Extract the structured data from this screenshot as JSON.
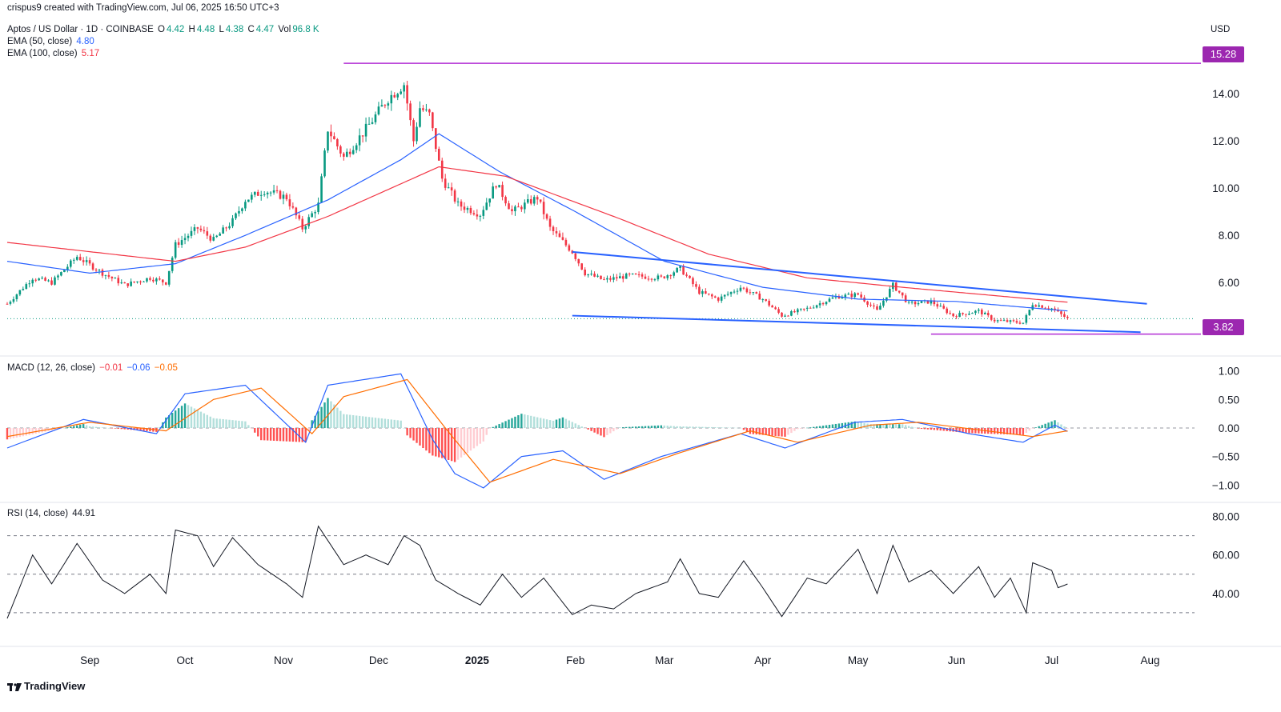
{
  "header": {
    "credit": "crispus9 created with TradingView.com, Jul 06, 2025 16:50 UTC+3",
    "symbol": "Aptos / US Dollar · 1D · COINBASE",
    "ohlc": {
      "o_label": "O",
      "o": "4.42",
      "h_label": "H",
      "h": "4.48",
      "l_label": "L",
      "l": "4.38",
      "c_label": "C",
      "c": "4.47",
      "v_label": "Vol",
      "v": "96.8 K"
    },
    "ema50": {
      "label": "EMA (50, close)",
      "value": "4.80"
    },
    "ema100": {
      "label": "EMA (100, close)",
      "value": "5.17"
    },
    "currency": "USD"
  },
  "macd_header": {
    "label": "MACD (12, 26, close)",
    "hist": "−0.01",
    "macd": "−0.06",
    "signal": "−0.05"
  },
  "rsi_header": {
    "label": "RSI (14, close)",
    "value": "44.91"
  },
  "footer": {
    "brand": "TradingView"
  },
  "price_tags": {
    "upper": "15.28",
    "lower": "3.82"
  },
  "colors": {
    "up": "#089981",
    "down": "#f23645",
    "ema50": "#2962ff",
    "ema100": "#f23645",
    "trend": "#2962ff",
    "level": "#b22fd4",
    "macd": "#2962ff",
    "signal": "#ff6d00",
    "rsi": "#131722"
  },
  "chart_data": [
    {
      "type": "candlestick",
      "title": "Aptos / US Dollar · 1D · COINBASE",
      "x_ticks": [
        "Sep",
        "Oct",
        "Nov",
        "Dec",
        "2025",
        "Feb",
        "Mar",
        "Apr",
        "May",
        "Jun",
        "Jul",
        "Aug"
      ],
      "y_ticks": [
        "14.00",
        "12.00",
        "10.00",
        "8.00",
        "6.00"
      ],
      "ylim": [
        3.4,
        16.2
      ],
      "x_range": [
        "2024-08-06",
        "2025-08-15"
      ],
      "close_anchors": [
        [
          "2024-08-06",
          5.1
        ],
        [
          "2024-08-14",
          6.2
        ],
        [
          "2024-08-20",
          6.0
        ],
        [
          "2024-08-28",
          7.1
        ],
        [
          "2024-09-05",
          6.4
        ],
        [
          "2024-09-12",
          5.9
        ],
        [
          "2024-09-20",
          6.2
        ],
        [
          "2024-09-25",
          6.0
        ],
        [
          "2024-09-28",
          7.6
        ],
        [
          "2024-10-05",
          8.3
        ],
        [
          "2024-10-10",
          7.8
        ],
        [
          "2024-10-16",
          8.6
        ],
        [
          "2024-10-20",
          9.5
        ],
        [
          "2024-10-26",
          9.9
        ],
        [
          "2024-11-02",
          9.6
        ],
        [
          "2024-11-07",
          8.3
        ],
        [
          "2024-11-12",
          9.3
        ],
        [
          "2024-11-15",
          12.5
        ],
        [
          "2024-11-20",
          11.3
        ],
        [
          "2024-11-27",
          12.5
        ],
        [
          "2024-12-04",
          13.8
        ],
        [
          "2024-12-09",
          14.4
        ],
        [
          "2024-12-12",
          12.0
        ],
        [
          "2024-12-14",
          13.4
        ],
        [
          "2024-12-17",
          13.1
        ],
        [
          "2024-12-21",
          10.4
        ],
        [
          "2024-12-26",
          9.3
        ],
        [
          "2025-01-02",
          8.9
        ],
        [
          "2025-01-07",
          10.2
        ],
        [
          "2025-01-12",
          9.0
        ],
        [
          "2025-01-20",
          9.6
        ],
        [
          "2025-01-24",
          8.3
        ],
        [
          "2025-01-31",
          7.3
        ],
        [
          "2025-02-04",
          6.4
        ],
        [
          "2025-02-10",
          6.1
        ],
        [
          "2025-02-18",
          6.3
        ],
        [
          "2025-02-28",
          6.2
        ],
        [
          "2025-03-06",
          6.6
        ],
        [
          "2025-03-12",
          5.6
        ],
        [
          "2025-03-18",
          5.3
        ],
        [
          "2025-03-25",
          5.8
        ],
        [
          "2025-04-01",
          5.3
        ],
        [
          "2025-04-07",
          4.6
        ],
        [
          "2025-04-15",
          4.9
        ],
        [
          "2025-04-24",
          5.4
        ],
        [
          "2025-05-01",
          5.5
        ],
        [
          "2025-05-07",
          4.8
        ],
        [
          "2025-05-12",
          5.9
        ],
        [
          "2025-05-17",
          5.1
        ],
        [
          "2025-05-24",
          5.2
        ],
        [
          "2025-05-31",
          4.6
        ],
        [
          "2025-06-08",
          4.8
        ],
        [
          "2025-06-13",
          4.4
        ],
        [
          "2025-06-22",
          4.3
        ],
        [
          "2025-06-25",
          5.1
        ],
        [
          "2025-07-01",
          4.9
        ],
        [
          "2025-07-06",
          4.47
        ]
      ],
      "ema50_anchors": [
        [
          "2024-08-06",
          6.9
        ],
        [
          "2024-09-01",
          6.4
        ],
        [
          "2024-09-28",
          6.8
        ],
        [
          "2024-10-20",
          8.0
        ],
        [
          "2024-11-15",
          9.5
        ],
        [
          "2024-12-08",
          11.2
        ],
        [
          "2024-12-20",
          12.3
        ],
        [
          "2025-01-08",
          10.7
        ],
        [
          "2025-02-01",
          9.0
        ],
        [
          "2025-03-01",
          6.9
        ],
        [
          "2025-04-01",
          5.8
        ],
        [
          "2025-05-01",
          5.3
        ],
        [
          "2025-06-01",
          5.2
        ],
        [
          "2025-07-06",
          4.8
        ]
      ],
      "ema100_anchors": [
        [
          "2024-08-06",
          7.7
        ],
        [
          "2024-09-28",
          6.9
        ],
        [
          "2024-10-20",
          7.5
        ],
        [
          "2024-11-15",
          8.8
        ],
        [
          "2024-12-20",
          10.9
        ],
        [
          "2025-01-10",
          10.5
        ],
        [
          "2025-02-15",
          8.7
        ],
        [
          "2025-03-15",
          7.2
        ],
        [
          "2025-04-15",
          6.2
        ],
        [
          "2025-05-15",
          5.8
        ],
        [
          "2025-07-06",
          5.17
        ]
      ],
      "trend_upper": [
        [
          "2025-01-31",
          7.3
        ],
        [
          "2025-07-31",
          5.1
        ]
      ],
      "trend_lower": [
        [
          "2025-01-31",
          4.6
        ],
        [
          "2025-07-29",
          3.9
        ]
      ],
      "level_upper": {
        "from": "2024-11-20",
        "value": 15.28
      },
      "level_lower": {
        "from": "2025-05-24",
        "value": 3.82
      },
      "last_price": 4.47
    },
    {
      "type": "line",
      "title": "MACD (12, 26, close)",
      "y_ticks": [
        "1.00",
        "0.50",
        "0.00",
        "−0.50",
        "−1.00"
      ],
      "ylim": [
        -1.22,
        1.22
      ],
      "macd_anchors": [
        [
          "2024-08-06",
          -0.35
        ],
        [
          "2024-08-30",
          0.15
        ],
        [
          "2024-09-22",
          -0.1
        ],
        [
          "2024-10-01",
          0.6
        ],
        [
          "2024-10-20",
          0.75
        ],
        [
          "2024-11-08",
          -0.25
        ],
        [
          "2024-11-15",
          0.75
        ],
        [
          "2024-12-08",
          0.95
        ],
        [
          "2024-12-18",
          -0.2
        ],
        [
          "2024-12-25",
          -0.8
        ],
        [
          "2025-01-03",
          -1.05
        ],
        [
          "2025-01-15",
          -0.5
        ],
        [
          "2025-01-28",
          -0.4
        ],
        [
          "2025-02-10",
          -0.9
        ],
        [
          "2025-02-28",
          -0.5
        ],
        [
          "2025-03-25",
          -0.1
        ],
        [
          "2025-04-08",
          -0.35
        ],
        [
          "2025-04-30",
          0.1
        ],
        [
          "2025-05-15",
          0.15
        ],
        [
          "2025-06-05",
          -0.1
        ],
        [
          "2025-06-22",
          -0.25
        ],
        [
          "2025-07-02",
          0.05
        ],
        [
          "2025-07-06",
          -0.06
        ]
      ],
      "signal_anchors": [
        [
          "2024-08-06",
          -0.15
        ],
        [
          "2024-09-01",
          0.1
        ],
        [
          "2024-09-25",
          -0.05
        ],
        [
          "2024-10-10",
          0.5
        ],
        [
          "2024-10-25",
          0.7
        ],
        [
          "2024-11-10",
          -0.1
        ],
        [
          "2024-11-20",
          0.55
        ],
        [
          "2024-12-10",
          0.85
        ],
        [
          "2024-12-22",
          0.0
        ],
        [
          "2025-01-05",
          -0.95
        ],
        [
          "2025-01-25",
          -0.55
        ],
        [
          "2025-02-15",
          -0.8
        ],
        [
          "2025-03-05",
          -0.45
        ],
        [
          "2025-03-28",
          -0.05
        ],
        [
          "2025-04-12",
          -0.25
        ],
        [
          "2025-05-05",
          0.05
        ],
        [
          "2025-05-20",
          0.1
        ],
        [
          "2025-06-25",
          -0.15
        ],
        [
          "2025-07-06",
          -0.05
        ]
      ]
    },
    {
      "type": "line",
      "title": "RSI (14, close)",
      "y_ticks": [
        "80.00",
        "60.00",
        "40.00"
      ],
      "ylim": [
        15,
        84
      ],
      "reference_lines": [
        70,
        50,
        30
      ],
      "rsi_anchors": [
        [
          "2024-08-06",
          27
        ],
        [
          "2024-08-14",
          60
        ],
        [
          "2024-08-20",
          45
        ],
        [
          "2024-08-28",
          66
        ],
        [
          "2024-09-05",
          47
        ],
        [
          "2024-09-12",
          40
        ],
        [
          "2024-09-20",
          50
        ],
        [
          "2024-09-25",
          40
        ],
        [
          "2024-09-28",
          73
        ],
        [
          "2024-10-05",
          70
        ],
        [
          "2024-10-10",
          54
        ],
        [
          "2024-10-16",
          69
        ],
        [
          "2024-10-24",
          55
        ],
        [
          "2024-11-02",
          45
        ],
        [
          "2024-11-07",
          38
        ],
        [
          "2024-11-12",
          75
        ],
        [
          "2024-11-20",
          55
        ],
        [
          "2024-11-27",
          60
        ],
        [
          "2024-12-04",
          55
        ],
        [
          "2024-12-09",
          70
        ],
        [
          "2024-12-14",
          65
        ],
        [
          "2024-12-19",
          47
        ],
        [
          "2024-12-26",
          40
        ],
        [
          "2025-01-02",
          34
        ],
        [
          "2025-01-09",
          50
        ],
        [
          "2025-01-15",
          38
        ],
        [
          "2025-01-22",
          48
        ],
        [
          "2025-01-31",
          29
        ],
        [
          "2025-02-06",
          34
        ],
        [
          "2025-02-13",
          32
        ],
        [
          "2025-02-20",
          40
        ],
        [
          "2025-03-02",
          46
        ],
        [
          "2025-03-06",
          58
        ],
        [
          "2025-03-12",
          40
        ],
        [
          "2025-03-18",
          38
        ],
        [
          "2025-03-26",
          57
        ],
        [
          "2025-04-01",
          43
        ],
        [
          "2025-04-07",
          28
        ],
        [
          "2025-04-15",
          48
        ],
        [
          "2025-04-21",
          45
        ],
        [
          "2025-05-01",
          63
        ],
        [
          "2025-05-07",
          40
        ],
        [
          "2025-05-12",
          65
        ],
        [
          "2025-05-17",
          46
        ],
        [
          "2025-05-24",
          52
        ],
        [
          "2025-05-31",
          40
        ],
        [
          "2025-06-08",
          54
        ],
        [
          "2025-06-13",
          38
        ],
        [
          "2025-06-18",
          48
        ],
        [
          "2025-06-23",
          30
        ],
        [
          "2025-06-25",
          56
        ],
        [
          "2025-07-01",
          52
        ],
        [
          "2025-07-03",
          43
        ],
        [
          "2025-07-06",
          44.91
        ]
      ]
    }
  ]
}
